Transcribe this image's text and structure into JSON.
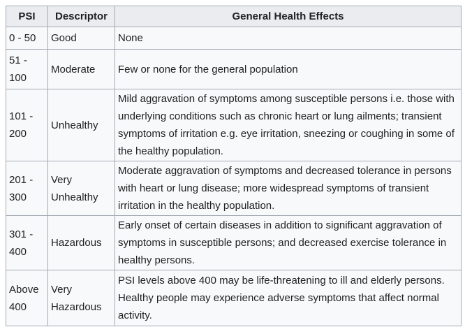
{
  "headers": [
    "PSI",
    "Descriptor",
    "General Health Effects"
  ],
  "rows": [
    {
      "psi": "0 - 50",
      "descriptor": "Good",
      "effects": "None"
    },
    {
      "psi": "51 - 100",
      "descriptor": "Moderate",
      "effects": "Few or none for the general population"
    },
    {
      "psi": "101 - 200",
      "descriptor": "Unhealthy",
      "effects": "Mild aggravation of symptoms among susceptible persons i.e. those with underlying conditions such as chronic heart or lung ailments; transient symptoms of irritation e.g. eye irritation, sneezing or coughing in some of the healthy population."
    },
    {
      "psi": "201 - 300",
      "descriptor": "Very Unhealthy",
      "effects": "Moderate aggravation of symptoms and decreased tolerance in persons with heart or lung disease; more widespread symptoms of transient irritation in the healthy population."
    },
    {
      "psi": "301 - 400",
      "descriptor": "Hazardous",
      "effects": "Early onset of certain diseases in addition to significant aggravation of symptoms in susceptible persons; and decreased exercise tolerance in healthy persons."
    },
    {
      "psi": "Above 400",
      "descriptor": "Very Hazardous",
      "effects": "PSI levels above 400 may be life-threatening to ill and elderly persons. Healthy people may experience adverse symptoms that affect normal activity."
    }
  ]
}
